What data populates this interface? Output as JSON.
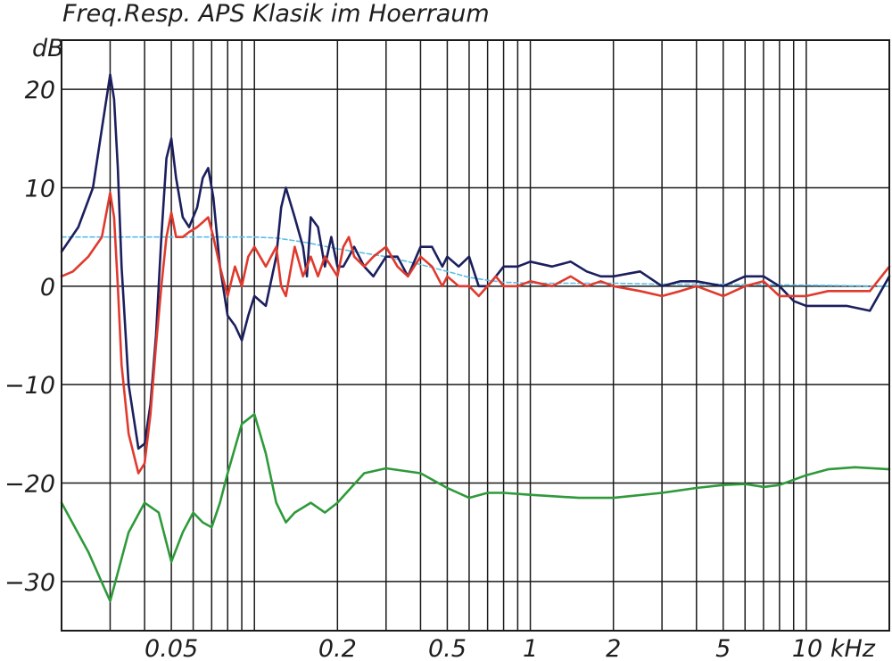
{
  "chart_data": {
    "type": "line",
    "title": "Freq.Resp. APS Klasik im Hoerraum",
    "ylabel": "dB",
    "xunit": "kHz",
    "xscale": "log",
    "xlim": [
      0.02,
      20
    ],
    "ylim": [
      -35,
      25
    ],
    "grid": true,
    "yticks": [
      {
        "value": 20,
        "label": "20"
      },
      {
        "value": 10,
        "label": "10"
      },
      {
        "value": 0,
        "label": "0"
      },
      {
        "value": -10,
        "label": "−10"
      },
      {
        "value": -20,
        "label": "−20"
      },
      {
        "value": -30,
        "label": "−30"
      }
    ],
    "xticks": [
      {
        "value": 0.05,
        "label": "0.05"
      },
      {
        "value": 0.2,
        "label": "0.2"
      },
      {
        "value": 0.5,
        "label": "0.5"
      },
      {
        "value": 1,
        "label": "1"
      },
      {
        "value": 2,
        "label": "2"
      },
      {
        "value": 5,
        "label": "5"
      },
      {
        "value": 10,
        "label": "10 kHz"
      }
    ],
    "series": [
      {
        "color": "#5bbde6",
        "dashed": true,
        "x": [
          0.02,
          0.04,
          0.06,
          0.08,
          0.1,
          0.12,
          0.15,
          0.2,
          0.3,
          0.4,
          0.5,
          0.6,
          0.7,
          0.8,
          1.0,
          1.5,
          2.0,
          3.0,
          5.0,
          10.0,
          20.0
        ],
        "y": [
          5,
          5,
          5,
          5,
          5,
          4.9,
          4.5,
          3.8,
          3.0,
          2.2,
          1.5,
          0.9,
          0.6,
          0.4,
          0.3,
          0.3,
          0.3,
          0.2,
          0.2,
          0.1,
          0
        ]
      },
      {
        "color": "#1b1f5e",
        "x": [
          0.02,
          0.023,
          0.026,
          0.028,
          0.03,
          0.031,
          0.032,
          0.033,
          0.035,
          0.038,
          0.04,
          0.042,
          0.044,
          0.046,
          0.048,
          0.05,
          0.052,
          0.055,
          0.058,
          0.062,
          0.065,
          0.068,
          0.071,
          0.075,
          0.08,
          0.085,
          0.09,
          0.095,
          0.1,
          0.11,
          0.12,
          0.125,
          0.13,
          0.14,
          0.15,
          0.155,
          0.16,
          0.17,
          0.18,
          0.19,
          0.2,
          0.21,
          0.22,
          0.23,
          0.25,
          0.27,
          0.3,
          0.33,
          0.36,
          0.4,
          0.44,
          0.48,
          0.5,
          0.55,
          0.6,
          0.65,
          0.7,
          0.75,
          0.8,
          0.9,
          1.0,
          1.2,
          1.4,
          1.6,
          1.8,
          2.0,
          2.5,
          3.0,
          3.5,
          4.0,
          5.0,
          6.0,
          7.0,
          8.0,
          9.0,
          10.0,
          12.0,
          14.0,
          17.0,
          20.0
        ],
        "y": [
          3.5,
          6,
          10,
          16,
          21.5,
          19,
          12,
          2,
          -10,
          -16.5,
          -16,
          -12,
          -5,
          5,
          13,
          15,
          11,
          7,
          6,
          8,
          11,
          12,
          9,
          2,
          -3,
          -4,
          -5.5,
          -3,
          -1,
          -2,
          3,
          8,
          10,
          7,
          4,
          1,
          7,
          6,
          2,
          5,
          2,
          2,
          3,
          4,
          2,
          1,
          3,
          3,
          1,
          4,
          4,
          2,
          3,
          2,
          3,
          0,
          0,
          1,
          2,
          2,
          2.5,
          2,
          2.5,
          1.5,
          1,
          1,
          1.5,
          0,
          0.5,
          0.5,
          0,
          1,
          1,
          0,
          -1.5,
          -2,
          -2,
          -2,
          -2.5,
          1
        ]
      },
      {
        "color": "#e03a2e",
        "x": [
          0.02,
          0.022,
          0.025,
          0.028,
          0.03,
          0.031,
          0.032,
          0.033,
          0.035,
          0.038,
          0.04,
          0.042,
          0.044,
          0.046,
          0.048,
          0.05,
          0.052,
          0.055,
          0.058,
          0.062,
          0.065,
          0.068,
          0.071,
          0.075,
          0.08,
          0.085,
          0.09,
          0.095,
          0.1,
          0.11,
          0.12,
          0.125,
          0.13,
          0.14,
          0.15,
          0.155,
          0.16,
          0.17,
          0.18,
          0.19,
          0.2,
          0.21,
          0.22,
          0.23,
          0.25,
          0.27,
          0.3,
          0.33,
          0.36,
          0.4,
          0.44,
          0.48,
          0.5,
          0.55,
          0.6,
          0.65,
          0.7,
          0.75,
          0.8,
          0.9,
          1.0,
          1.2,
          1.4,
          1.6,
          1.8,
          2.0,
          2.5,
          3.0,
          3.5,
          4.0,
          5.0,
          6.0,
          7.0,
          8.0,
          9.0,
          10.0,
          12.0,
          14.0,
          17.0,
          20.0
        ],
        "y": [
          1,
          1.5,
          3,
          5,
          9.5,
          7,
          0,
          -8,
          -15,
          -19,
          -18,
          -13,
          -6,
          0,
          5,
          7.5,
          5,
          5,
          5.5,
          6,
          6.5,
          7,
          5,
          2,
          -1,
          2,
          0,
          3,
          4,
          2,
          4,
          0,
          -1,
          4,
          1,
          2,
          3,
          1,
          3,
          2,
          1,
          4,
          5,
          3,
          2,
          3,
          4,
          2,
          1,
          3,
          2,
          0,
          1,
          0,
          0,
          -1,
          0,
          1,
          0,
          0,
          0.5,
          0,
          1,
          0,
          0.5,
          0,
          -0.5,
          -1,
          -0.5,
          0,
          -1,
          0,
          0.5,
          -1,
          -1,
          -1,
          -0.5,
          -0.5,
          -0.5,
          2
        ]
      },
      {
        "color": "#2e9a3a",
        "x": [
          0.02,
          0.025,
          0.03,
          0.035,
          0.04,
          0.045,
          0.05,
          0.055,
          0.06,
          0.065,
          0.07,
          0.075,
          0.08,
          0.09,
          0.1,
          0.11,
          0.12,
          0.13,
          0.14,
          0.16,
          0.18,
          0.2,
          0.25,
          0.3,
          0.4,
          0.5,
          0.6,
          0.7,
          0.8,
          1.0,
          1.5,
          2.0,
          3.0,
          4.0,
          5.0,
          6.0,
          7.0,
          8.0,
          10.0,
          12.0,
          15.0,
          20.0
        ],
        "y": [
          -22,
          -27,
          -32,
          -25,
          -22,
          -23,
          -28,
          -25,
          -23,
          -24,
          -24.5,
          -22,
          -19,
          -14,
          -13,
          -17,
          -22,
          -24,
          -23,
          -22,
          -23,
          -22,
          -19,
          -18.5,
          -19,
          -20.5,
          -21.5,
          -21,
          -21,
          -21.2,
          -21.5,
          -21.5,
          -21,
          -20.5,
          -20.2,
          -20.1,
          -20.4,
          -20.2,
          -19.2,
          -18.6,
          -18.4,
          -18.6
        ]
      }
    ]
  }
}
